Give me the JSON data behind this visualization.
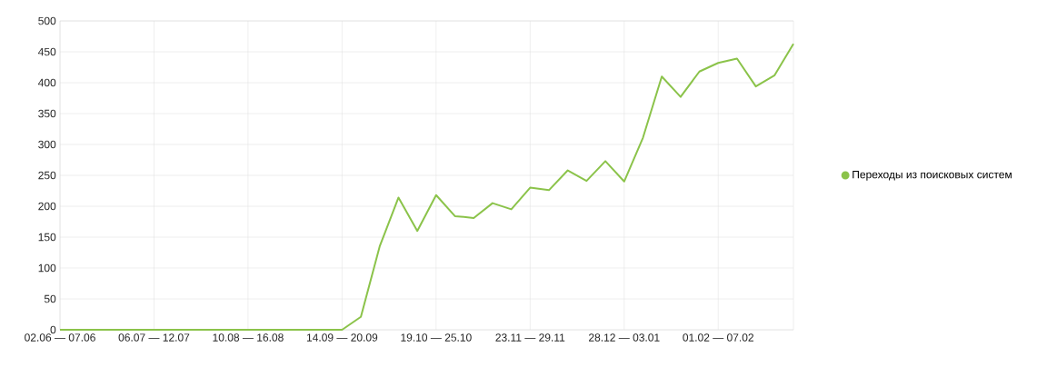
{
  "chart_data": {
    "type": "line",
    "categories": [
      "02.06 — 07.06",
      null,
      null,
      null,
      null,
      "06.07 — 12.07",
      null,
      null,
      null,
      null,
      "10.08 — 16.08",
      null,
      null,
      null,
      null,
      "14.09 — 20.09",
      null,
      null,
      null,
      null,
      "19.10 — 25.10",
      null,
      null,
      null,
      null,
      "23.11 — 29.11",
      null,
      null,
      null,
      null,
      "28.12 — 03.01",
      null,
      null,
      null,
      null,
      "01.02 — 07.02",
      null,
      null,
      null,
      null
    ],
    "series": [
      {
        "name": "Переходы из поисковых систем",
        "color": "#8bc34a",
        "values": [
          0,
          0,
          0,
          0,
          0,
          0,
          0,
          0,
          0,
          0,
          0,
          0,
          0,
          0,
          0,
          0,
          21,
          135,
          214,
          160,
          218,
          184,
          181,
          205,
          195,
          230,
          226,
          258,
          241,
          273,
          240,
          311,
          410,
          377,
          418,
          432,
          439,
          394,
          412,
          463
        ]
      }
    ],
    "ylim": [
      0,
      500
    ],
    "yticks": [
      0,
      50,
      100,
      150,
      200,
      250,
      300,
      350,
      400,
      450,
      500
    ],
    "grid": true,
    "legend": "right",
    "marker": "none",
    "line_style": "solid"
  }
}
